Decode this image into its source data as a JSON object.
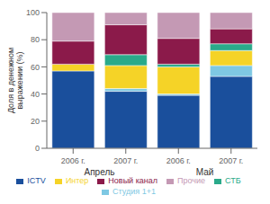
{
  "chart_data": {
    "type": "bar",
    "stacked": true,
    "categories": [
      "2006 г.",
      "2007 г.",
      "2006 г.",
      "2007 г."
    ],
    "group_labels": [
      "Апрель",
      "Май"
    ],
    "y_label": "Доля в денежном\nвыражении (%)",
    "series": [
      {
        "name": "ICTV",
        "color": "#1a4f9c",
        "values": [
          57,
          42,
          39,
          53
        ]
      },
      {
        "name": "Студия 1+1",
        "color": "#7ec8e3",
        "values": [
          0,
          2,
          1,
          8
        ]
      },
      {
        "name": "Интер",
        "color": "#f5d327",
        "values": [
          5,
          17,
          20,
          11
        ]
      },
      {
        "name": "СТБ",
        "color": "#2aaa8a",
        "values": [
          0,
          8,
          2,
          5
        ]
      },
      {
        "name": "Новый канал",
        "color": "#8b1a4a",
        "values": [
          17,
          22,
          19,
          11
        ]
      },
      {
        "name": "Прочие",
        "color": "#c499b4",
        "values": [
          21,
          9,
          19,
          12
        ]
      }
    ],
    "ylim": [
      0,
      100
    ],
    "yticks": [
      0,
      20,
      40,
      60,
      80,
      100
    ],
    "grid": false,
    "legend": "bottom"
  }
}
